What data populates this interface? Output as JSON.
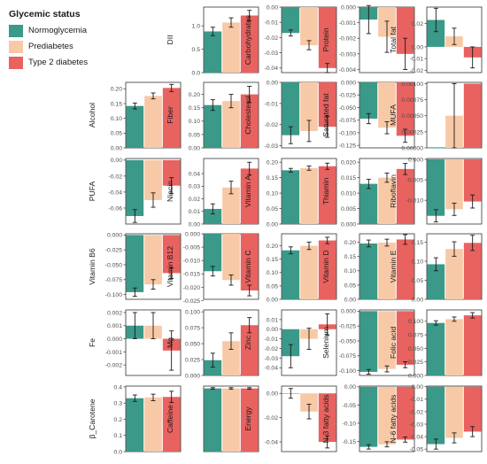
{
  "legend": {
    "title": "Glycemic status",
    "items": [
      {
        "label": "Normoglycemia",
        "color": "#3a9988"
      },
      {
        "label": "Prediabetes",
        "color": "#f8c9a6"
      },
      {
        "label": "Type 2 diabetes",
        "color": "#e8625f"
      }
    ]
  },
  "chart_data": [
    {
      "type": "bar",
      "ylabel": "DII",
      "categories": [
        "Normoglycemia",
        "Prediabetes",
        "Type 2 diabetes"
      ],
      "values": [
        0.88,
        1.07,
        1.22
      ],
      "errors": [
        0.09,
        0.1,
        0.11
      ],
      "ylim": [
        0,
        1.4
      ],
      "ticks": [
        0,
        0.5,
        1.0
      ],
      "tick_labels": [
        "0.0",
        "0.5",
        "1.0"
      ]
    },
    {
      "type": "bar",
      "ylabel": "Carbohydrates",
      "categories": [
        "Normoglycemia",
        "Prediabetes",
        "Type 2 diabetes"
      ],
      "values": [
        -0.017,
        -0.025,
        -0.04
      ],
      "errors": [
        0.002,
        0.003,
        0.003
      ],
      "ylim": [
        -0.043,
        0
      ],
      "ticks": [
        0,
        -0.01,
        -0.02,
        -0.03,
        -0.04
      ],
      "tick_labels": [
        "0.00",
        "-0.01",
        "-0.02",
        "-0.03",
        "-0.04"
      ]
    },
    {
      "type": "bar",
      "ylabel": "Protein",
      "categories": [
        "Normoglycemia",
        "Prediabetes",
        "Type 2 diabetes"
      ],
      "values": [
        -0.0008,
        -0.0019,
        -0.003
      ],
      "errors": [
        0.0009,
        0.001,
        0.001
      ],
      "ylim": [
        -0.0042,
        0
      ],
      "ticks": [
        0,
        -0.001,
        -0.002,
        -0.003,
        -0.004
      ],
      "tick_labels": [
        "0.000",
        "-0.001",
        "-0.002",
        "-0.003",
        "-0.004"
      ]
    },
    {
      "type": "bar",
      "ylabel": "Total fat",
      "categories": [
        "Normoglycemia",
        "Prediabetes",
        "Type 2 diabetes"
      ],
      "values": [
        0.023,
        0.009,
        -0.009
      ],
      "errors": [
        0.01,
        0.007,
        0.009
      ],
      "ylim": [
        -0.022,
        0.034
      ],
      "ticks": [
        0.02,
        0,
        -0.01,
        -0.02
      ],
      "tick_labels": [
        "0.02",
        "0.00",
        "-0.01",
        "-0.02"
      ]
    },
    {
      "type": "bar",
      "ylabel": "Alcohol",
      "categories": [
        "Normoglycemia",
        "Prediabetes",
        "Type 2 diabetes"
      ],
      "values": [
        0.142,
        0.176,
        0.203
      ],
      "errors": [
        0.01,
        0.01,
        0.012
      ],
      "ylim": [
        0,
        0.222
      ],
      "ticks": [
        0,
        0.05,
        0.1,
        0.15,
        0.2
      ],
      "tick_labels": [
        "0.00",
        "0.05",
        "0.10",
        "0.15",
        "0.20"
      ]
    },
    {
      "type": "bar",
      "ylabel": "Fiber",
      "categories": [
        "Normoglycemia",
        "Prediabetes",
        "Type 2 diabetes"
      ],
      "values": [
        0.16,
        0.175,
        0.2
      ],
      "errors": [
        0.02,
        0.025,
        0.03
      ],
      "ylim": [
        0,
        0.245
      ],
      "ticks": [
        0,
        0.05,
        0.1,
        0.15,
        0.2
      ],
      "tick_labels": [
        "0.00",
        "0.05",
        "0.10",
        "0.15",
        "0.20"
      ]
    },
    {
      "type": "bar",
      "ylabel": "Cholesterol",
      "categories": [
        "Normoglycemia",
        "Prediabetes",
        "Type 2 diabetes"
      ],
      "values": [
        -0.025,
        -0.023,
        -0.021
      ],
      "errors": [
        0.004,
        0.005,
        0.005
      ],
      "ylim": [
        -0.031,
        0
      ],
      "ticks": [
        0,
        -0.01,
        -0.02,
        -0.03
      ],
      "tick_labels": [
        "0.00",
        "-0.01",
        "-0.02",
        "-0.03"
      ]
    },
    {
      "type": "bar",
      "ylabel": "Saturated fat",
      "categories": [
        "Normoglycemia",
        "Prediabetes",
        "Type 2 diabetes"
      ],
      "values": [
        -0.072,
        -0.09,
        -0.106
      ],
      "errors": [
        0.01,
        0.012,
        0.013
      ],
      "ylim": [
        -0.13,
        0
      ],
      "ticks": [
        0,
        -0.025,
        -0.05,
        -0.075,
        -0.1,
        -0.125
      ],
      "tick_labels": [
        "0.000",
        "-0.025",
        "-0.050",
        "-0.075",
        "-0.100",
        "-0.125"
      ]
    },
    {
      "type": "bar",
      "ylabel": "MUFA",
      "categories": [
        "Normoglycemia",
        "Prediabetes",
        "Type 2 diabetes"
      ],
      "values": [
        0,
        0.0005,
        0.001
      ],
      "errors": [
        0,
        0.0005,
        0
      ],
      "ylim": [
        0,
        0.00102
      ],
      "ticks": [
        0,
        0.00025,
        0.0005,
        0.00075,
        0.001
      ],
      "tick_labels": [
        "0.00000",
        "0.00025",
        "0.00050",
        "0.00075",
        "0.00100"
      ]
    },
    {
      "type": "bar",
      "ylabel": "PUFA",
      "categories": [
        "Normoglycemia",
        "Prediabetes",
        "Type 2 diabetes"
      ],
      "values": [
        -0.07,
        -0.05,
        -0.032
      ],
      "errors": [
        0.008,
        0.009,
        0.01
      ],
      "ylim": [
        -0.08,
        0.002
      ],
      "ticks": [
        0,
        -0.02,
        -0.04,
        -0.06
      ],
      "tick_labels": [
        "0.00",
        "-0.02",
        "-0.04",
        "-0.06"
      ]
    },
    {
      "type": "bar",
      "ylabel": "Niacin",
      "categories": [
        "Normoglycemia",
        "Prediabetes",
        "Type 2 diabetes"
      ],
      "values": [
        0.012,
        0.029,
        0.044
      ],
      "errors": [
        0.004,
        0.005,
        0.005
      ],
      "ylim": [
        0,
        0.052
      ],
      "ticks": [
        0,
        0.01,
        0.02,
        0.03,
        0.04
      ],
      "tick_labels": [
        "0.00",
        "0.01",
        "0.02",
        "0.03",
        "0.04"
      ]
    },
    {
      "type": "bar",
      "ylabel": "Vitamin A",
      "categories": [
        "Normoglycemia",
        "Prediabetes",
        "Type 2 diabetes"
      ],
      "values": [
        0.174,
        0.181,
        0.187
      ],
      "errors": [
        0.006,
        0.007,
        0.01
      ],
      "ylim": [
        0,
        0.212
      ],
      "ticks": [
        0,
        0.05,
        0.1,
        0.15,
        0.2
      ],
      "tick_labels": [
        "0.00",
        "0.05",
        "0.10",
        "0.15",
        "0.20"
      ]
    },
    {
      "type": "bar",
      "ylabel": "Thiamin",
      "categories": [
        "Normoglycemia",
        "Prediabetes",
        "Type 2 diabetes"
      ],
      "values": [
        0.013,
        0.015,
        0.0178
      ],
      "errors": [
        0.0015,
        0.0015,
        0.0018
      ],
      "ylim": [
        0,
        0.0212
      ],
      "ticks": [
        0,
        0.005,
        0.01,
        0.015,
        0.02
      ],
      "tick_labels": [
        "0.000",
        "0.005",
        "0.010",
        "0.015",
        "0.020"
      ]
    },
    {
      "type": "bar",
      "ylabel": "Riboflavin",
      "categories": [
        "Normoglycemia",
        "Prediabetes",
        "Type 2 diabetes"
      ],
      "values": [
        -0.0138,
        -0.0122,
        -0.0103
      ],
      "errors": [
        0.0015,
        0.0015,
        0.0016
      ],
      "ylim": [
        -0.0158,
        0.0002
      ],
      "ticks": [
        0,
        -0.005,
        -0.01
      ],
      "tick_labels": [
        "0.000",
        "-0.005",
        "-0.010"
      ]
    },
    {
      "type": "bar",
      "ylabel": "Vitamin B6",
      "categories": [
        "Normoglycemia",
        "Prediabetes",
        "Type 2 diabetes"
      ],
      "values": [
        -0.096,
        -0.083,
        -0.064
      ],
      "errors": [
        0.007,
        0.008,
        0.009
      ],
      "ylim": [
        -0.108,
        0.002
      ],
      "ticks": [
        0,
        -0.025,
        -0.05,
        -0.075,
        -0.1
      ],
      "tick_labels": [
        "0.000",
        "-0.025",
        "-0.050",
        "-0.075",
        "-0.100"
      ]
    },
    {
      "type": "bar",
      "ylabel": "Vitamin B12",
      "categories": [
        "Normoglycemia",
        "Prediabetes",
        "Type 2 diabetes"
      ],
      "values": [
        -0.014,
        -0.0173,
        -0.0212
      ],
      "errors": [
        0.0018,
        0.0019,
        0.002
      ],
      "ylim": [
        -0.0245,
        0
      ],
      "ticks": [
        0,
        -0.005,
        -0.01,
        -0.015,
        -0.02,
        -0.025
      ],
      "tick_labels": [
        "0.000",
        "-0.005",
        "-0.010",
        "-0.015",
        "-0.020",
        "-0.025"
      ]
    },
    {
      "type": "bar",
      "ylabel": "Vitamin C",
      "categories": [
        "Normoglycemia",
        "Prediabetes",
        "Type 2 diabetes"
      ],
      "values": [
        0.183,
        0.2,
        0.22
      ],
      "errors": [
        0.013,
        0.014,
        0.012
      ],
      "ylim": [
        0,
        0.245
      ],
      "ticks": [
        0,
        0.05,
        0.1,
        0.15,
        0.2
      ],
      "tick_labels": [
        "0.00",
        "0.05",
        "0.10",
        "0.15",
        "0.20"
      ]
    },
    {
      "type": "bar",
      "ylabel": "Vitamin D",
      "categories": [
        "Normoglycemia",
        "Prediabetes",
        "Type 2 diabetes"
      ],
      "values": [
        0.196,
        0.199,
        0.21
      ],
      "errors": [
        0.012,
        0.012,
        0.017
      ],
      "ylim": [
        0,
        0.23
      ],
      "ticks": [
        0,
        0.05,
        0.1,
        0.15,
        0.2
      ],
      "tick_labels": [
        "0.00",
        "0.05",
        "0.10",
        "0.15",
        "0.20"
      ]
    },
    {
      "type": "bar",
      "ylabel": "Vitamin E",
      "categories": [
        "Normoglycemia",
        "Prediabetes",
        "Type 2 diabetes"
      ],
      "values": [
        0.092,
        0.132,
        0.148
      ],
      "errors": [
        0.017,
        0.019,
        0.02
      ],
      "ylim": [
        0,
        0.172
      ],
      "ticks": [
        0,
        0.05,
        0.1,
        0.15
      ],
      "tick_labels": [
        "0.00",
        "0.05",
        "0.10",
        "0.15"
      ]
    },
    {
      "type": "bar",
      "ylabel": "Fe",
      "categories": [
        "Normoglycemia",
        "Prediabetes",
        "Type 2 diabetes"
      ],
      "values": [
        0.001,
        0.001,
        -0.0009
      ],
      "errors": [
        0.001,
        0.001,
        0.0015
      ],
      "ylim": [
        -0.0028,
        0.0022
      ],
      "ticks": [
        0.002,
        0.001,
        0,
        -0.001,
        -0.002
      ],
      "tick_labels": [
        "0.002",
        "0.001",
        "0.000",
        "-0.001",
        "-0.002"
      ]
    },
    {
      "type": "bar",
      "ylabel": "Mg",
      "categories": [
        "Normoglycemia",
        "Prediabetes",
        "Type 2 diabetes"
      ],
      "values": [
        0.024,
        0.054,
        0.079
      ],
      "errors": [
        0.011,
        0.013,
        0.012
      ],
      "ylim": [
        0,
        0.103
      ],
      "ticks": [
        0,
        0.025,
        0.05,
        0.075,
        0.1
      ],
      "tick_labels": [
        "0.000",
        "0.025",
        "0.050",
        "0.075",
        "0.100"
      ]
    },
    {
      "type": "bar",
      "ylabel": "Zinc",
      "categories": [
        "Normoglycemia",
        "Prediabetes",
        "Type 2 diabetes"
      ],
      "values": [
        -0.028,
        -0.01,
        0.005
      ],
      "errors": [
        0.012,
        0.011,
        0.011
      ],
      "ylim": [
        -0.048,
        0.02
      ],
      "ticks": [
        0.01,
        0,
        -0.01,
        -0.02,
        -0.03,
        -0.04
      ],
      "tick_labels": [
        "0.01",
        "0.00",
        "-0.01",
        "-0.02",
        "-0.03",
        "-0.04"
      ]
    },
    {
      "type": "bar",
      "ylabel": "Selenium",
      "categories": [
        "Normoglycemia",
        "Prediabetes",
        "Type 2 diabetes"
      ],
      "values": [
        -0.102,
        -0.097,
        -0.09
      ],
      "errors": [
        0.004,
        0.005,
        0.005
      ],
      "ylim": [
        -0.108,
        0.002
      ],
      "ticks": [
        0,
        -0.025,
        -0.05,
        -0.075,
        -0.1
      ],
      "tick_labels": [
        "0.000",
        "-0.025",
        "-0.050",
        "-0.075",
        "-0.100"
      ]
    },
    {
      "type": "bar",
      "ylabel": "Folic acid",
      "categories": [
        "Normoglycemia",
        "Prediabetes",
        "Type 2 diabetes"
      ],
      "values": [
        0.097,
        0.104,
        0.111
      ],
      "errors": [
        0.004,
        0.004,
        0.005
      ],
      "ylim": [
        0,
        0.121
      ],
      "ticks": [
        0,
        0.025,
        0.05,
        0.075,
        0.1
      ],
      "tick_labels": [
        "0.000",
        "0.025",
        "0.050",
        "0.075",
        "0.100"
      ]
    },
    {
      "type": "bar",
      "ylabel": "β_Carotene",
      "categories": [
        "Normoglycemia",
        "Prediabetes",
        "Type 2 diabetes"
      ],
      "values": [
        0.33,
        0.335,
        0.338
      ],
      "errors": [
        0.02,
        0.02,
        0.035
      ],
      "ylim": [
        0,
        0.405
      ],
      "ticks": [
        0,
        0.1,
        0.2,
        0.3,
        0.4
      ],
      "tick_labels": [
        "0.0",
        "0.1",
        "0.2",
        "0.3",
        "0.4"
      ]
    },
    {
      "type": "bar",
      "ylabel": "Caffeine",
      "categories": [
        "Normoglycemia",
        "Prediabetes",
        "Type 2 diabetes"
      ],
      "values": [
        0.00081,
        0.00081,
        0.00081
      ],
      "errors": [
        1e-05,
        1e-05,
        1e-05
      ],
      "ylim": [
        0,
        0.00084
      ],
      "ticks": [],
      "tick_labels": []
    },
    {
      "type": "bar",
      "ylabel": "Energy",
      "categories": [
        "Normoglycemia",
        "Prediabetes",
        "Type 2 diabetes"
      ],
      "values": [
        0,
        -0.015,
        -0.04
      ],
      "errors": [
        0.004,
        0.006,
        0.005
      ],
      "ylim": [
        -0.048,
        0.006
      ],
      "ticks": [
        0,
        -0.02,
        -0.04
      ],
      "tick_labels": [
        "0.00",
        "-0.02",
        "-0.04"
      ]
    },
    {
      "type": "bar",
      "ylabel": "N-3 fatty acids",
      "categories": [
        "Normoglycemia",
        "Prediabetes",
        "Type 2 diabetes"
      ],
      "values": [
        -0.165,
        -0.158,
        -0.145
      ],
      "errors": [
        0.006,
        0.007,
        0.007
      ],
      "ylim": [
        -0.178,
        0.002
      ],
      "ticks": [
        0,
        -0.05,
        -0.1,
        -0.15
      ],
      "tick_labels": [
        "0.00",
        "-0.05",
        "-0.10",
        "-0.15"
      ]
    },
    {
      "type": "bar",
      "ylabel": "N-6 fatty acids",
      "categories": [
        "Normoglycemia",
        "Prediabetes",
        "Type 2 diabetes"
      ],
      "values": [
        -0.046,
        -0.041,
        -0.036
      ],
      "errors": [
        0.004,
        0.004,
        0.004
      ],
      "ylim": [
        -0.052,
        0.0005
      ],
      "ticks": [
        0,
        -0.01,
        -0.02,
        -0.03,
        -0.04,
        -0.05
      ],
      "tick_labels": [
        "0.00",
        "-0.01",
        "-0.02",
        "-0.03",
        "-0.04",
        "-0.05"
      ]
    }
  ]
}
